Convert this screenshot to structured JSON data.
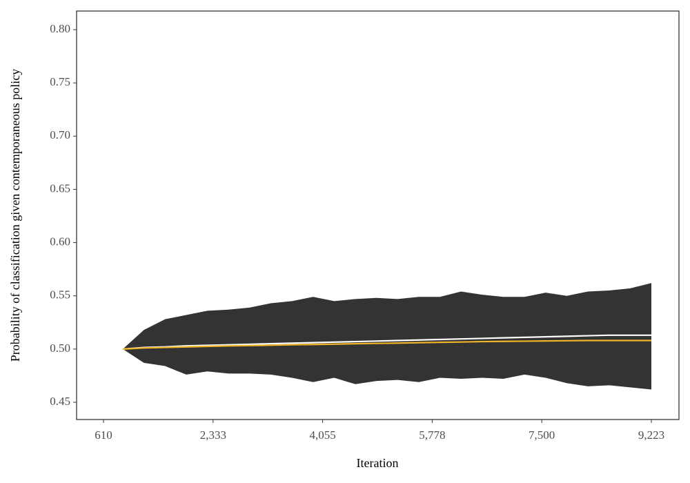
{
  "chart_data": {
    "type": "band-line",
    "x_label": "Iteration",
    "y_label": "Probability of classification given contemporaneous policy",
    "x": [
      914,
      1246,
      1579,
      1911,
      2243,
      2576,
      2908,
      3240,
      3573,
      3905,
      4237,
      4570,
      4902,
      5234,
      5567,
      5899,
      6231,
      6564,
      6896,
      7228,
      7561,
      7893,
      8225,
      8558,
      8890,
      9223
    ],
    "band": {
      "color": "#333333",
      "upper": [
        0.5,
        0.518,
        0.528,
        0.532,
        0.536,
        0.537,
        0.539,
        0.543,
        0.545,
        0.549,
        0.545,
        0.547,
        0.548,
        0.547,
        0.549,
        0.549,
        0.554,
        0.551,
        0.549,
        0.549,
        0.553,
        0.55,
        0.554,
        0.555,
        0.557,
        0.562
      ],
      "lower": [
        0.5,
        0.487,
        0.484,
        0.476,
        0.479,
        0.477,
        0.477,
        0.476,
        0.473,
        0.469,
        0.473,
        0.467,
        0.47,
        0.471,
        0.469,
        0.473,
        0.472,
        0.473,
        0.472,
        0.476,
        0.473,
        0.468,
        0.465,
        0.466,
        0.464,
        0.462
      ]
    },
    "series": [
      {
        "color": "#ffffff",
        "values": [
          0.5,
          0.5015,
          0.502,
          0.503,
          0.5035,
          0.504,
          0.5045,
          0.505,
          0.5055,
          0.506,
          0.5065,
          0.507,
          0.5075,
          0.508,
          0.5085,
          0.509,
          0.5095,
          0.51,
          0.5105,
          0.511,
          0.5115,
          0.512,
          0.5125,
          0.513,
          0.513,
          0.513
        ]
      },
      {
        "color": "#f0b429",
        "values": [
          0.5,
          0.501,
          0.5015,
          0.502,
          0.5025,
          0.503,
          0.5033,
          0.5036,
          0.504,
          0.5043,
          0.5046,
          0.505,
          0.5053,
          0.5056,
          0.506,
          0.5063,
          0.5066,
          0.507,
          0.5072,
          0.5074,
          0.5076,
          0.5078,
          0.508,
          0.508,
          0.508,
          0.508
        ]
      }
    ],
    "xlim": [
      187,
      9657
    ],
    "xticks": [
      610,
      {
        "value": 2333,
        "label": "2,333"
      },
      {
        "value": 4055,
        "label": "4,055"
      },
      {
        "value": 5778,
        "label": "5,778"
      },
      {
        "value": 7500,
        "label": "7,500"
      },
      {
        "value": 9223,
        "label": "9,223"
      }
    ],
    "ylim": [
      0.4338,
      0.8175
    ],
    "yticks": [
      0.45,
      {
        "value": 0.5,
        "label": "0.50"
      },
      0.55,
      {
        "value": 0.6,
        "label": "0.60"
      },
      0.65,
      {
        "value": 0.7,
        "label": "0.70"
      },
      0.75,
      {
        "value": 0.8,
        "label": "0.80"
      }
    ]
  }
}
